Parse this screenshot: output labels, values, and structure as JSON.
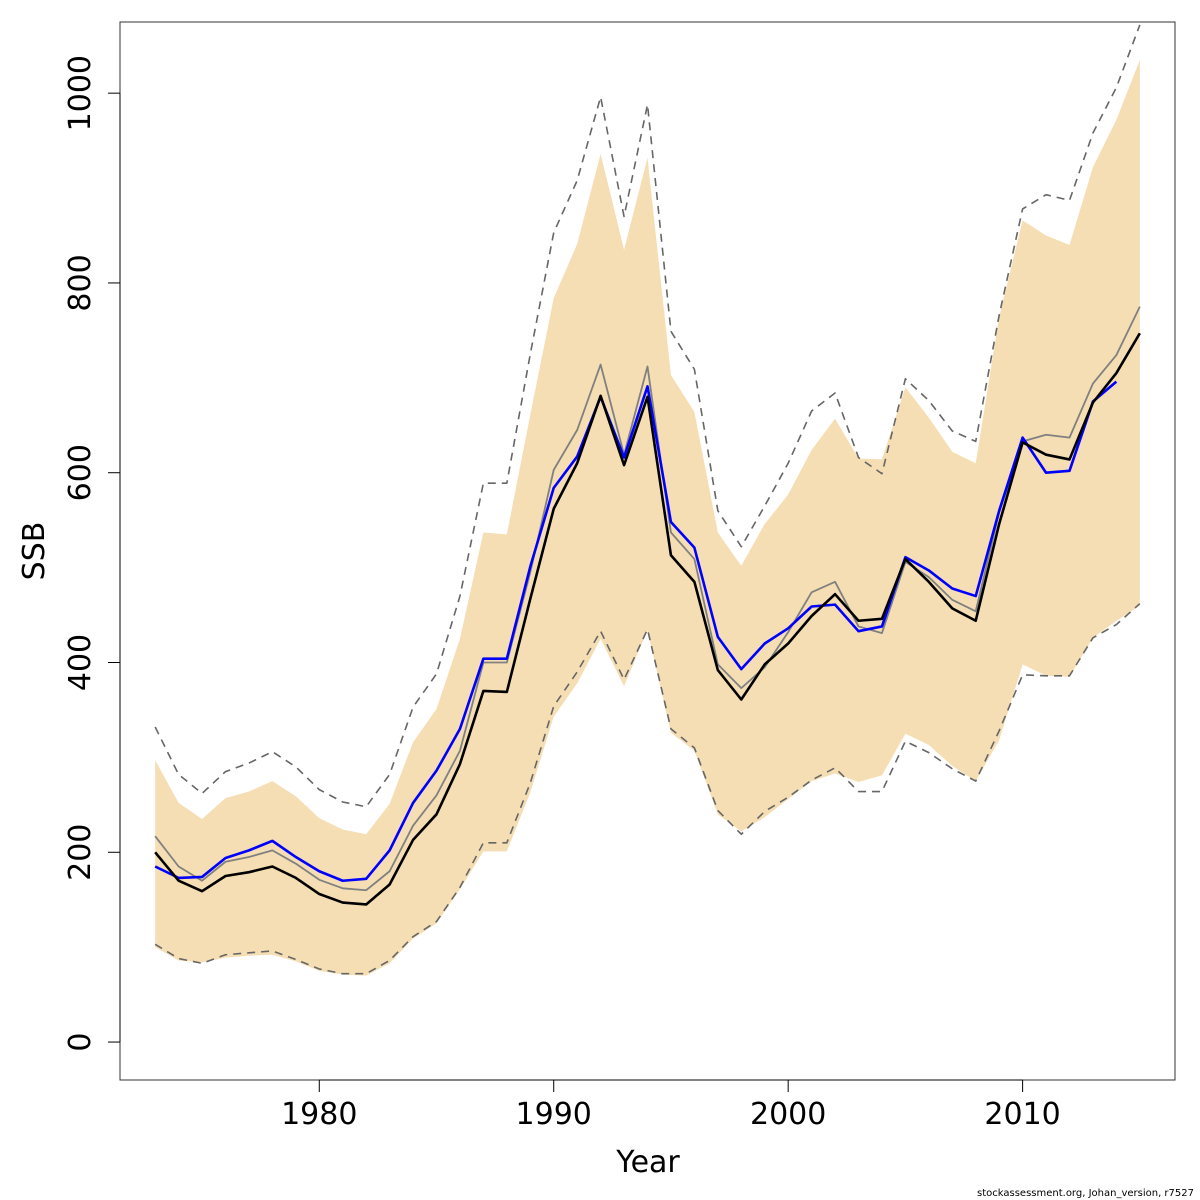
{
  "chart_data": {
    "type": "line",
    "xlabel": "Year",
    "ylabel": "SSB",
    "xlim": [
      1971.5,
      2016.5
    ],
    "ylim": [
      -40,
      1075
    ],
    "x_ticks": [
      1980,
      1990,
      2000,
      2010
    ],
    "x_tick_labels": [
      "1980",
      "1990",
      "2000",
      "2010"
    ],
    "y_ticks": [
      0,
      200,
      400,
      600,
      800,
      1000
    ],
    "y_tick_labels": [
      "0",
      "200",
      "400",
      "600",
      "800",
      "1000"
    ],
    "grid": false,
    "legend": "none",
    "colors": {
      "band": "#f5deb3",
      "black_line": "#000000",
      "gray_line": "#808080",
      "blue_line": "#0000ff",
      "dashed_line": "#666666"
    },
    "x": [
      1973,
      1974,
      1975,
      1976,
      1977,
      1978,
      1979,
      1980,
      1981,
      1982,
      1983,
      1984,
      1985,
      1986,
      1987,
      1988,
      1989,
      1990,
      1991,
      1992,
      1993,
      1994,
      1995,
      1996,
      1997,
      1998,
      1999,
      2000,
      2001,
      2002,
      2003,
      2004,
      2005,
      2006,
      2007,
      2008,
      2009,
      2010,
      2011,
      2012,
      2013,
      2014,
      2015
    ],
    "band_upper": [
      297,
      252,
      235,
      257,
      264,
      275,
      259,
      236,
      224,
      219,
      251,
      316,
      351,
      425,
      537,
      535,
      661,
      784,
      841,
      936,
      835,
      932,
      703,
      664,
      537,
      502,
      546,
      577,
      624,
      657,
      615,
      614,
      690,
      658,
      622,
      610,
      764,
      866,
      850,
      840,
      922,
      972,
      1035
    ],
    "band_lower": [
      100,
      86,
      84,
      89,
      91,
      92,
      85,
      75,
      71,
      70,
      83,
      109,
      125,
      161,
      201,
      201,
      263,
      343,
      378,
      425,
      375,
      434,
      326,
      307,
      240,
      222,
      237,
      256,
      275,
      283,
      274,
      281,
      325,
      313,
      291,
      275,
      318,
      398,
      386,
      385,
      426,
      444,
      460
    ],
    "series": [
      {
        "values": [
          200,
          170,
          159,
          175,
          179,
          185,
          173,
          156,
          147,
          145,
          166,
          213,
          240,
          293,
          370,
          369,
          467,
          562,
          610,
          681,
          608,
          680,
          513,
          485,
          392,
          361,
          398,
          420,
          449,
          472,
          444,
          446,
          509,
          485,
          457,
          444,
          546,
          632,
          619,
          614,
          674,
          705,
          747
        ]
      },
      {
        "values": [
          217,
          185,
          170,
          190,
          195,
          202,
          188,
          171,
          162,
          160,
          180,
          228,
          260,
          307,
          400,
          400,
          495,
          603,
          645,
          714,
          619,
          712,
          537,
          509,
          398,
          373,
          395,
          432,
          474,
          485,
          438,
          431,
          506,
          490,
          466,
          454,
          558,
          633,
          640,
          637,
          694,
          724,
          775
        ]
      },
      {
        "values": [
          185,
          173,
          174,
          194,
          202,
          212,
          195,
          180,
          170,
          172,
          202,
          252,
          286,
          330,
          404,
          404,
          501,
          584,
          617,
          680,
          616,
          691,
          548,
          521,
          427,
          393,
          420,
          436,
          459,
          461,
          433,
          438,
          511,
          497,
          478,
          470,
          560,
          637,
          600,
          602,
          675,
          696,
          null
        ]
      },
      {
        "values": [
          332,
          282,
          262,
          285,
          294,
          306,
          290,
          266,
          253,
          248,
          282,
          353,
          388,
          470,
          589,
          589,
          725,
          853,
          908,
          996,
          870,
          988,
          749,
          709,
          560,
          522,
          565,
          610,
          665,
          684,
          616,
          599,
          699,
          676,
          644,
          633,
          766,
          878,
          893,
          887,
          958,
          1006,
          1072
        ]
      },
      {
        "values": [
          103,
          88,
          83,
          92,
          94,
          96,
          87,
          77,
          72,
          72,
          86,
          111,
          127,
          163,
          210,
          210,
          273,
          354,
          390,
          433,
          382,
          435,
          330,
          310,
          244,
          219,
          243,
          258,
          276,
          289,
          264,
          264,
          317,
          305,
          288,
          275,
          328,
          387,
          386,
          386,
          426,
          440,
          462
        ]
      }
    ]
  },
  "footer": "stockassessment.org, Johan_version, r7527"
}
